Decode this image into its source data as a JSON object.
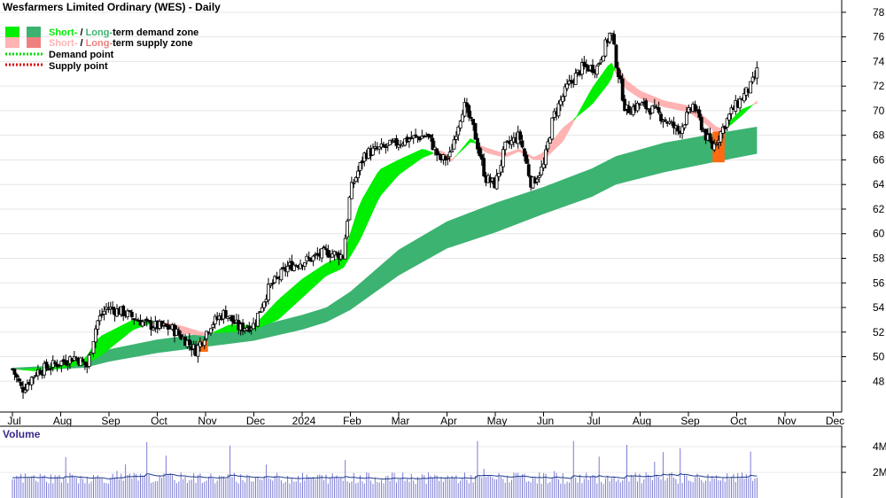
{
  "chart_data": {
    "type": "candlestick",
    "title": "Wesfarmers Limited Ordinary (WES) - Daily",
    "legend": [
      {
        "short": "Short-",
        "sep": " / ",
        "long": "Long-",
        "rest": "term demand zone",
        "short_color": "#00ee00",
        "long_color": "#3cb371"
      },
      {
        "short": "Short-",
        "sep": " / ",
        "long": "Long-",
        "rest": "term supply zone",
        "short_color": "#ffb3b3",
        "long_color": "#f08080"
      },
      {
        "label": "Demand point",
        "color": "#00dd00"
      },
      {
        "label": "Supply point",
        "color": "#dd0000"
      }
    ],
    "x_labels": [
      "Jul",
      "Aug",
      "Sep",
      "Oct",
      "Nov",
      "Dec",
      "2024",
      "Feb",
      "Mar",
      "Apr",
      "May",
      "Jun",
      "Jul",
      "Aug",
      "Sep",
      "Oct",
      "Nov",
      "Dec"
    ],
    "y_ticks": [
      48,
      50,
      52,
      54,
      56,
      58,
      60,
      62,
      64,
      66,
      68,
      70,
      72,
      74,
      76,
      78
    ],
    "ylim": [
      45.5,
      79
    ],
    "volume_label": "Volume",
    "volume_ticks": [
      "4M",
      "2M"
    ],
    "volume_tick_values": [
      4,
      2
    ],
    "volume_ylim": [
      0,
      5.6
    ],
    "price_anchors": [
      {
        "month": 0.0,
        "price": 49.0
      },
      {
        "month": 0.2,
        "price": 47.3
      },
      {
        "month": 0.5,
        "price": 48.8
      },
      {
        "month": 0.9,
        "price": 49.4
      },
      {
        "month": 1.3,
        "price": 50.0
      },
      {
        "month": 1.55,
        "price": 49.2
      },
      {
        "month": 1.75,
        "price": 52.8
      },
      {
        "month": 1.95,
        "price": 54.0
      },
      {
        "month": 2.3,
        "price": 53.6
      },
      {
        "month": 2.8,
        "price": 52.6
      },
      {
        "month": 3.3,
        "price": 52.3
      },
      {
        "month": 3.6,
        "price": 51.3
      },
      {
        "month": 3.8,
        "price": 50.5
      },
      {
        "month": 4.1,
        "price": 52.6
      },
      {
        "month": 4.4,
        "price": 53.6
      },
      {
        "month": 4.7,
        "price": 52.3
      },
      {
        "month": 5.0,
        "price": 52.6
      },
      {
        "month": 5.3,
        "price": 55.5
      },
      {
        "month": 5.7,
        "price": 57.3
      },
      {
        "month": 6.2,
        "price": 58.0
      },
      {
        "month": 6.5,
        "price": 58.5
      },
      {
        "month": 6.85,
        "price": 58.2
      },
      {
        "month": 7.0,
        "price": 63.5
      },
      {
        "month": 7.3,
        "price": 66.5
      },
      {
        "month": 7.7,
        "price": 67.0
      },
      {
        "month": 8.2,
        "price": 67.7
      },
      {
        "month": 8.6,
        "price": 68.0
      },
      {
        "month": 8.85,
        "price": 66.0
      },
      {
        "month": 9.05,
        "price": 66.2
      },
      {
        "month": 9.2,
        "price": 68.5
      },
      {
        "month": 9.35,
        "price": 70.5
      },
      {
        "month": 9.55,
        "price": 68.5
      },
      {
        "month": 9.8,
        "price": 64.5
      },
      {
        "month": 10.0,
        "price": 64.0
      },
      {
        "month": 10.2,
        "price": 67.0
      },
      {
        "month": 10.5,
        "price": 68.0
      },
      {
        "month": 10.75,
        "price": 64.0
      },
      {
        "month": 11.0,
        "price": 65.5
      },
      {
        "month": 11.2,
        "price": 69.5
      },
      {
        "month": 11.5,
        "price": 72.0
      },
      {
        "month": 11.8,
        "price": 73.5
      },
      {
        "month": 12.1,
        "price": 73.5
      },
      {
        "month": 12.4,
        "price": 76.5
      },
      {
        "month": 12.5,
        "price": 74.0
      },
      {
        "month": 12.7,
        "price": 70.0
      },
      {
        "month": 13.0,
        "price": 70.5
      },
      {
        "month": 13.3,
        "price": 70.0
      },
      {
        "month": 13.6,
        "price": 69.0
      },
      {
        "month": 13.8,
        "price": 68.3
      },
      {
        "month": 14.1,
        "price": 70.5
      },
      {
        "month": 14.35,
        "price": 68.0
      },
      {
        "month": 14.5,
        "price": 67.0
      },
      {
        "month": 14.7,
        "price": 68.5
      },
      {
        "month": 14.9,
        "price": 70.0
      },
      {
        "month": 15.1,
        "price": 71.0
      },
      {
        "month": 15.3,
        "price": 72.0
      },
      {
        "month": 15.42,
        "price": 73.2
      }
    ],
    "long_zone": [
      {
        "month": 0.0,
        "low": 48.9,
        "high": 49.1
      },
      {
        "month": 1.0,
        "low": 49.0,
        "high": 49.3
      },
      {
        "month": 1.5,
        "low": 49.1,
        "high": 49.8
      },
      {
        "month": 2.0,
        "low": 49.6,
        "high": 50.6
      },
      {
        "month": 3.0,
        "low": 50.3,
        "high": 51.4
      },
      {
        "month": 4.0,
        "low": 50.8,
        "high": 51.9
      },
      {
        "month": 5.0,
        "low": 51.3,
        "high": 52.4
      },
      {
        "month": 6.0,
        "low": 52.2,
        "high": 53.4
      },
      {
        "month": 6.5,
        "low": 52.8,
        "high": 54.0
      },
      {
        "month": 7.0,
        "low": 53.8,
        "high": 55.3
      },
      {
        "month": 8.0,
        "low": 56.6,
        "high": 58.7
      },
      {
        "month": 9.0,
        "low": 58.8,
        "high": 61.0
      },
      {
        "month": 10.0,
        "low": 60.1,
        "high": 62.5
      },
      {
        "month": 11.0,
        "low": 61.6,
        "high": 63.8
      },
      {
        "month": 12.0,
        "low": 63.0,
        "high": 65.3
      },
      {
        "month": 12.5,
        "low": 64.0,
        "high": 66.3
      },
      {
        "month": 13.5,
        "low": 65.0,
        "high": 67.4
      },
      {
        "month": 14.5,
        "low": 65.8,
        "high": 68.1
      },
      {
        "month": 15.42,
        "low": 66.5,
        "high": 68.7
      }
    ],
    "short_zone": [
      {
        "month": 0.0,
        "a": 49.0,
        "b": 48.9
      },
      {
        "month": 0.6,
        "a": 48.8,
        "b": 49.1
      },
      {
        "month": 1.5,
        "a": 49.4,
        "b": 49.8
      },
      {
        "month": 1.8,
        "a": 50.0,
        "b": 51.6
      },
      {
        "month": 2.5,
        "a": 52.2,
        "b": 53.0
      },
      {
        "month": 3.0,
        "a": 52.9,
        "b": 52.8
      },
      {
        "month": 3.5,
        "a": 52.5,
        "b": 51.9
      },
      {
        "month": 4.0,
        "a": 51.9,
        "b": 51.7
      },
      {
        "month": 4.5,
        "a": 52.0,
        "b": 52.6
      },
      {
        "month": 5.0,
        "a": 52.2,
        "b": 52.5
      },
      {
        "month": 5.5,
        "a": 53.0,
        "b": 54.6
      },
      {
        "month": 6.0,
        "a": 54.8,
        "b": 56.3
      },
      {
        "month": 6.5,
        "a": 56.6,
        "b": 57.6
      },
      {
        "month": 6.85,
        "a": 57.2,
        "b": 58.2
      },
      {
        "month": 7.2,
        "a": 59.5,
        "b": 62.5
      },
      {
        "month": 7.6,
        "a": 63.0,
        "b": 65.2
      },
      {
        "month": 8.0,
        "a": 64.8,
        "b": 66.0
      },
      {
        "month": 8.5,
        "a": 66.2,
        "b": 66.9
      },
      {
        "month": 8.9,
        "a": 66.8,
        "b": 66.3
      },
      {
        "month": 9.1,
        "a": 66.0,
        "b": 65.9
      },
      {
        "month": 9.5,
        "a": 67.5,
        "b": 67.8
      },
      {
        "month": 9.8,
        "a": 67.0,
        "b": 66.6
      },
      {
        "month": 10.2,
        "a": 66.5,
        "b": 66.2
      },
      {
        "month": 10.5,
        "a": 66.9,
        "b": 66.7
      },
      {
        "month": 10.8,
        "a": 66.2,
        "b": 66.0
      },
      {
        "month": 11.0,
        "a": 66.6,
        "b": 66.0
      },
      {
        "month": 11.4,
        "a": 68.6,
        "b": 67.5
      },
      {
        "month": 12.0,
        "a": 70.5,
        "b": 71.8
      },
      {
        "month": 12.4,
        "a": 72.5,
        "b": 74.0
      },
      {
        "month": 12.5,
        "a": 74.0,
        "b": 73.0
      },
      {
        "month": 12.7,
        "a": 72.5,
        "b": 71.8
      },
      {
        "month": 13.0,
        "a": 71.6,
        "b": 71.0
      },
      {
        "month": 13.5,
        "a": 70.8,
        "b": 70.3
      },
      {
        "month": 14.0,
        "a": 70.4,
        "b": 69.9
      },
      {
        "month": 14.3,
        "a": 69.6,
        "b": 69.1
      },
      {
        "month": 14.6,
        "a": 68.6,
        "b": 68.1
      },
      {
        "month": 14.8,
        "a": 68.6,
        "b": 68.9
      },
      {
        "month": 15.1,
        "a": 69.6,
        "b": 70.1
      },
      {
        "month": 15.42,
        "a": 70.8,
        "b": 70.6
      }
    ],
    "supply_blocks": [
      {
        "from": 3.85,
        "to": 4.05,
        "low": 50.4,
        "high": 51.3
      },
      {
        "from": 14.5,
        "to": 14.75,
        "low": 65.8,
        "high": 68.3
      }
    ]
  }
}
